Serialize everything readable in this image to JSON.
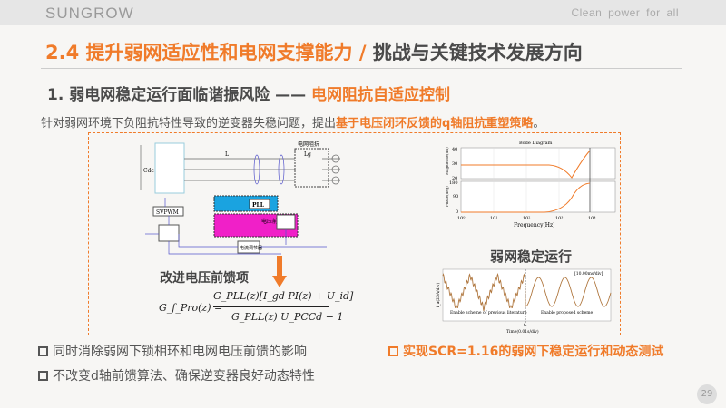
{
  "header": {
    "logo": "SUNGROW",
    "slogan": "Clean power for all"
  },
  "title": {
    "highlight": "2.4 提升弱网适应性和电网支撑能力 /",
    "rest": " 挑战与关键技术发展方向"
  },
  "subtitle": {
    "main": "1. 弱电网稳定运行面临谐振风险 —— ",
    "highlight": "电网阻抗自适应控制"
  },
  "intro": {
    "text": "针对弱网环境下负阻抗特性导致的逆变器失稳问题，提出",
    "highlight": "基于电压闭环反馈的q轴阻抗重塑策略",
    "end": "。"
  },
  "circuit": {
    "grid_impedance": "电网阻抗",
    "pll": "PLL",
    "voltage_ff": "电压前馈",
    "svpwm": "SVPWM",
    "current_reg": "电流调节器",
    "inductor": "L",
    "grid_inductor": "Lg",
    "cdc": "Cdc"
  },
  "feedforward": {
    "label": "改进电压前馈项",
    "lhs": "G_f_Pro(z) =",
    "numerator": "G_PLL(z)[I_gd PI(z) + U_id]",
    "denominator": "G_PLL(z) U_PCCd − 1"
  },
  "bode": {
    "title": "Bode Diagram",
    "ylabel_mag": "Magnitude(dB)",
    "ylabel_phase": "Phase(deg)",
    "xlabel": "Frequency(Hz)",
    "mag_ticks": [
      "40",
      "30",
      "20"
    ],
    "phase_ticks": [
      "180",
      "90",
      "0"
    ],
    "x_ticks": [
      "10⁰",
      "10¹",
      "10²",
      "10³",
      "10⁴"
    ]
  },
  "waveform": {
    "heading": "弱网稳定运行",
    "scale": "[10.00ms/div]",
    "ylabel": "i_a(25A/div)",
    "left_note": "Enable scheme of previous literature",
    "right_note": "Enable proposed scheme",
    "t_label": "t₁",
    "xlabel": "Time(0.01s/div)"
  },
  "bullets": [
    {
      "text": "同时消除弱网下锁相环和电网电压前馈的影响"
    },
    {
      "text": "不改变d轴前馈算法、确保逆变器良好动态特性"
    },
    {
      "text": "实现SCR=1.16的弱网下稳定运行和动态测试"
    }
  ],
  "page_number": "29",
  "colors": {
    "accent": "#f07b2a",
    "text": "#4a4a4a",
    "pll_box": "#1aa3e0",
    "ff_box": "#f020c8"
  }
}
